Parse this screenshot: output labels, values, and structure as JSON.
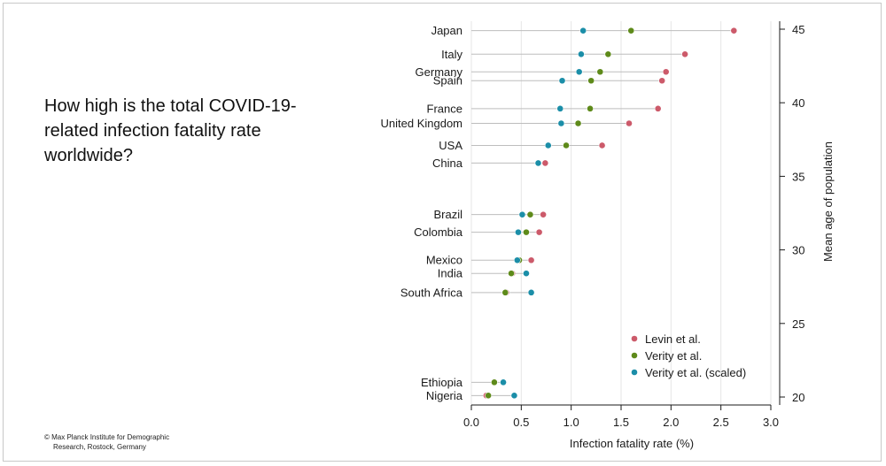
{
  "headline": "How high is the total COVID-19-related infection fatality rate worldwide?",
  "credit": {
    "line1": "© Max Planck Institute for Demographic",
    "line2": "Research, Rostock, Germany"
  },
  "chart_data": {
    "type": "dot",
    "xlabel": "Infection fatality rate (%)",
    "ylabel": "Mean age of population",
    "xlim": [
      0,
      3.0
    ],
    "ylim": [
      20,
      45
    ],
    "xticks": [
      "0.0",
      "0.5",
      "1.0",
      "1.5",
      "2.0",
      "2.5",
      "3.0"
    ],
    "yticks": [
      "20",
      "25",
      "30",
      "35",
      "40",
      "45"
    ],
    "legend_position": "bottom-right",
    "series": [
      {
        "name": "Levin et al.",
        "color": "#cc5a6a"
      },
      {
        "name": "Verity et al.",
        "color": "#5e8a1a"
      },
      {
        "name": "Verity et al. (scaled)",
        "color": "#1b8ea8"
      }
    ],
    "countries": [
      {
        "name": "Japan",
        "age": 44.9,
        "values": [
          2.63,
          1.6,
          1.12
        ]
      },
      {
        "name": "Italy",
        "age": 43.3,
        "values": [
          2.14,
          1.37,
          1.1
        ]
      },
      {
        "name": "Germany",
        "age": 42.1,
        "values": [
          1.95,
          1.29,
          1.08
        ]
      },
      {
        "name": "Spain",
        "age": 41.5,
        "values": [
          1.91,
          1.2,
          0.91
        ]
      },
      {
        "name": "France",
        "age": 39.6,
        "values": [
          1.87,
          1.19,
          0.89
        ]
      },
      {
        "name": "United Kingdom",
        "age": 38.6,
        "values": [
          1.58,
          1.07,
          0.9
        ]
      },
      {
        "name": "USA",
        "age": 37.1,
        "values": [
          1.31,
          0.95,
          0.77
        ]
      },
      {
        "name": "China",
        "age": 35.9,
        "values": [
          0.74,
          0.67,
          0.67
        ]
      },
      {
        "name": "Brazil",
        "age": 32.4,
        "values": [
          0.72,
          0.59,
          0.51
        ]
      },
      {
        "name": "Colombia",
        "age": 31.2,
        "values": [
          0.68,
          0.55,
          0.47
        ]
      },
      {
        "name": "Mexico",
        "age": 29.3,
        "values": [
          0.6,
          0.48,
          0.46
        ]
      },
      {
        "name": "India",
        "age": 28.4,
        "values": [
          0.41,
          0.4,
          0.55
        ]
      },
      {
        "name": "South Africa",
        "age": 27.1,
        "values": [
          0.35,
          0.34,
          0.6
        ]
      },
      {
        "name": "Ethiopia",
        "age": 21.0,
        "values": [
          0.23,
          0.23,
          0.32
        ]
      },
      {
        "name": "Nigeria",
        "age": 20.1,
        "values": [
          0.15,
          0.17,
          0.43
        ]
      }
    ]
  }
}
